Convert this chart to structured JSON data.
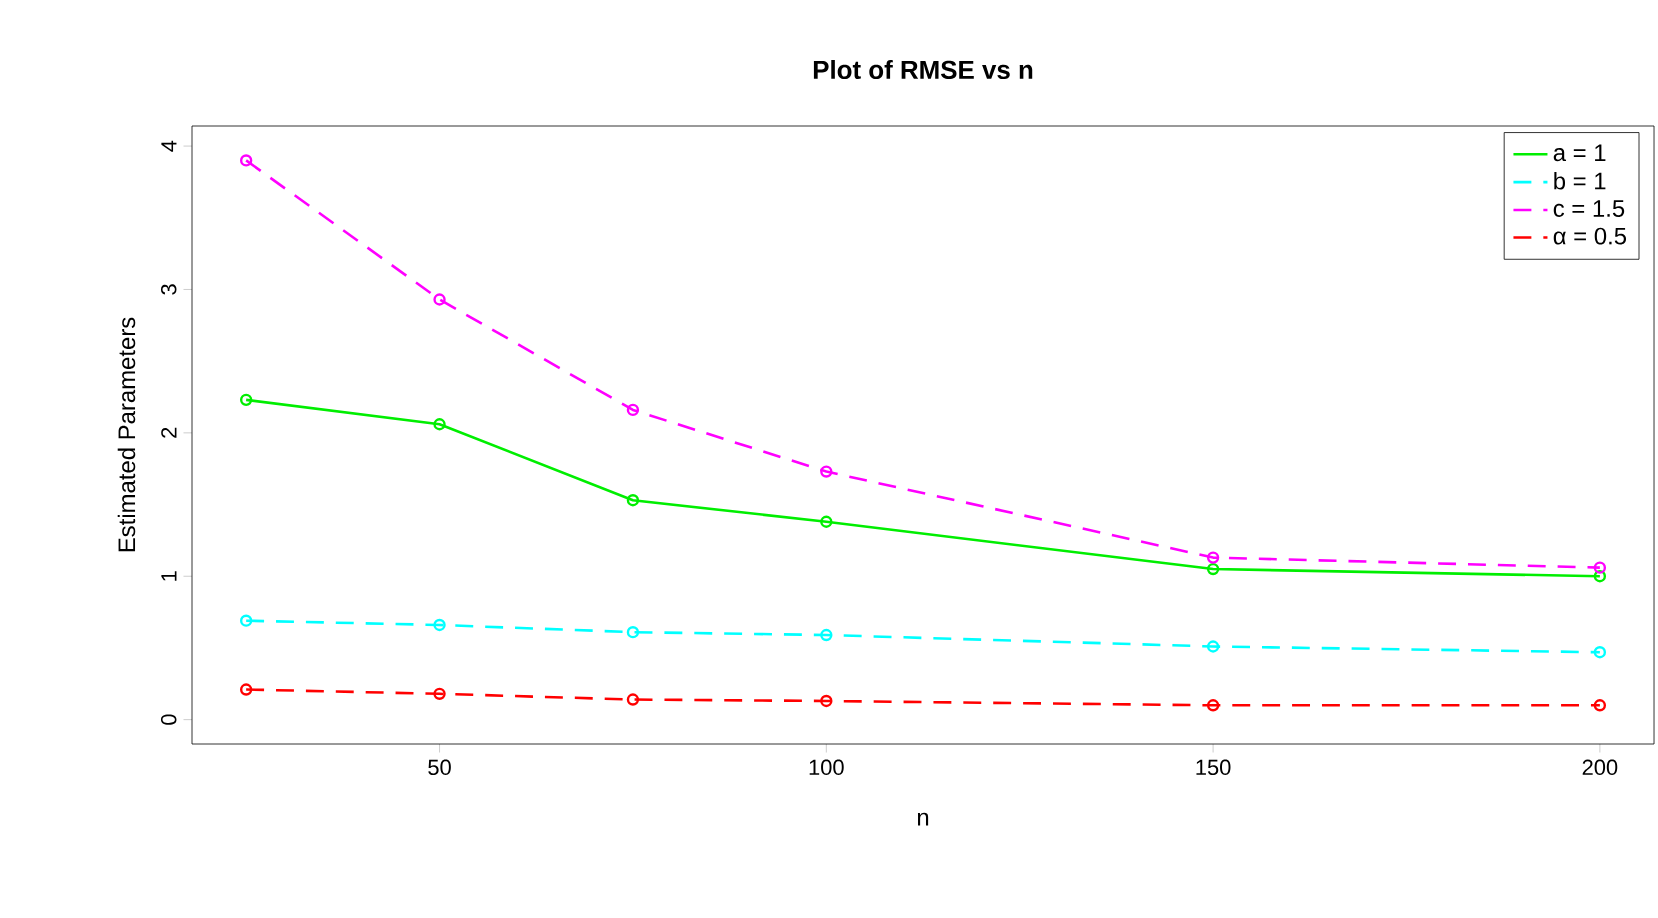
{
  "chart_data": {
    "type": "line",
    "title": "Plot of RMSE vs n",
    "xlabel": "n",
    "ylabel": "Estimated Parameters",
    "x": [
      25,
      50,
      75,
      100,
      150,
      200
    ],
    "series": [
      {
        "name": "a = 1",
        "color": "#00ee00",
        "line_style": "solid",
        "values": [
          2.23,
          2.06,
          1.53,
          1.38,
          1.05,
          1.0
        ]
      },
      {
        "name": "b = 1",
        "color": "#00ffff",
        "line_style": "dashed",
        "values": [
          0.69,
          0.66,
          0.61,
          0.59,
          0.51,
          0.47
        ]
      },
      {
        "name": "c = 1.5",
        "color": "#ff00ff",
        "line_style": "dashed",
        "values": [
          3.9,
          2.93,
          2.16,
          1.73,
          1.13,
          1.06
        ]
      },
      {
        "name": "α = 0.5",
        "color": "#ff0000",
        "line_style": "dashed",
        "values": [
          0.21,
          0.18,
          0.14,
          0.13,
          0.1,
          0.1
        ]
      }
    ],
    "xlim": [
      18,
      207
    ],
    "ylim": [
      -0.17,
      4.14
    ],
    "xticks": [
      50,
      100,
      150,
      200
    ],
    "yticks": [
      0,
      1,
      2,
      3,
      4
    ],
    "marker": "circle",
    "legend": "top right",
    "grid": false
  }
}
